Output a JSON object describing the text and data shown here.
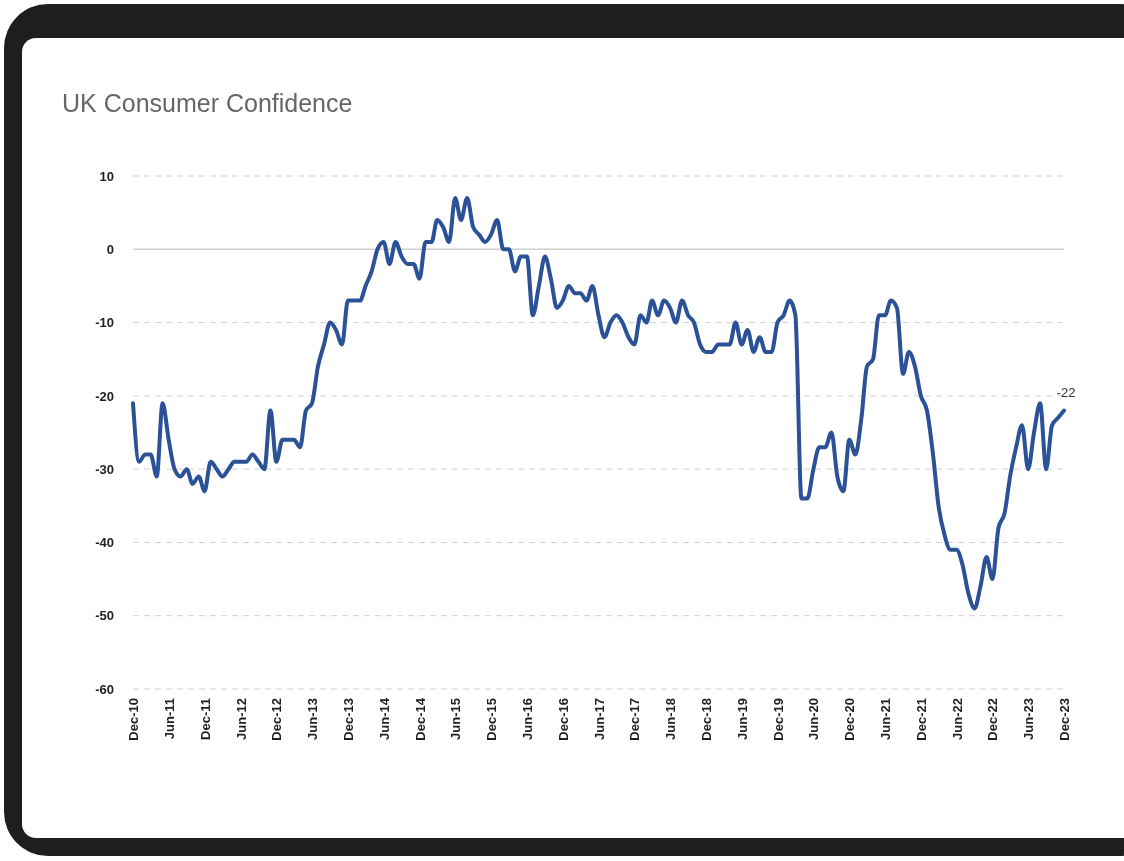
{
  "chart_data": {
    "type": "line",
    "title": "UK Consumer Confidence",
    "x": [
      "2010-12",
      "2011-01",
      "2011-02",
      "2011-03",
      "2011-04",
      "2011-05",
      "2011-06",
      "2011-07",
      "2011-08",
      "2011-09",
      "2011-10",
      "2011-11",
      "2011-12",
      "2012-01",
      "2012-02",
      "2012-03",
      "2012-04",
      "2012-05",
      "2012-06",
      "2012-07",
      "2012-08",
      "2012-09",
      "2012-10",
      "2012-11",
      "2012-12",
      "2013-01",
      "2013-02",
      "2013-03",
      "2013-04",
      "2013-05",
      "2013-06",
      "2013-07",
      "2013-08",
      "2013-09",
      "2013-10",
      "2013-11",
      "2013-12",
      "2014-01",
      "2014-02",
      "2014-03",
      "2014-04",
      "2014-05",
      "2014-06",
      "2014-07",
      "2014-08",
      "2014-09",
      "2014-10",
      "2014-11",
      "2014-12",
      "2015-01",
      "2015-02",
      "2015-03",
      "2015-04",
      "2015-05",
      "2015-06",
      "2015-07",
      "2015-08",
      "2015-09",
      "2015-10",
      "2015-11",
      "2015-12",
      "2016-01",
      "2016-02",
      "2016-03",
      "2016-04",
      "2016-05",
      "2016-06",
      "2016-07",
      "2016-08",
      "2016-09",
      "2016-10",
      "2016-11",
      "2016-12",
      "2017-01",
      "2017-02",
      "2017-03",
      "2017-04",
      "2017-05",
      "2017-06",
      "2017-07",
      "2017-08",
      "2017-09",
      "2017-10",
      "2017-11",
      "2017-12",
      "2018-01",
      "2018-02",
      "2018-03",
      "2018-04",
      "2018-05",
      "2018-06",
      "2018-07",
      "2018-08",
      "2018-09",
      "2018-10",
      "2018-11",
      "2018-12",
      "2019-01",
      "2019-02",
      "2019-03",
      "2019-04",
      "2019-05",
      "2019-06",
      "2019-07",
      "2019-08",
      "2019-09",
      "2019-10",
      "2019-11",
      "2019-12",
      "2020-01",
      "2020-02",
      "2020-03",
      "2020-04",
      "2020-05",
      "2020-06",
      "2020-07",
      "2020-08",
      "2020-09",
      "2020-10",
      "2020-11",
      "2020-12",
      "2021-01",
      "2021-02",
      "2021-03",
      "2021-04",
      "2021-05",
      "2021-06",
      "2021-07",
      "2021-08",
      "2021-09",
      "2021-10",
      "2021-11",
      "2021-12",
      "2022-01",
      "2022-02",
      "2022-03",
      "2022-04",
      "2022-05",
      "2022-06",
      "2022-07",
      "2022-08",
      "2022-09",
      "2022-10",
      "2022-11",
      "2022-12",
      "2023-01",
      "2023-02",
      "2023-03",
      "2023-04",
      "2023-05",
      "2023-06",
      "2023-07",
      "2023-08",
      "2023-09",
      "2023-10",
      "2023-11",
      "2023-12"
    ],
    "series": [
      {
        "color": "#2b5197",
        "values": [
          -21,
          -29,
          -28,
          -28,
          -31,
          -21,
          -26,
          -30,
          -31,
          -30,
          -32,
          -31,
          -33,
          -29,
          -30,
          -31,
          -30,
          -29,
          -29,
          -29,
          -28,
          -29,
          -30,
          -22,
          -29,
          -26,
          -26,
          -26,
          -27,
          -22,
          -21,
          -16,
          -13,
          -10,
          -11,
          -13,
          -7,
          -7,
          -7,
          -5,
          -3,
          0,
          1,
          -2,
          1,
          -1,
          -2,
          -2,
          -4,
          1,
          1,
          4,
          3,
          1,
          7,
          4,
          7,
          3,
          2,
          1,
          2,
          4,
          0,
          0,
          -3,
          -1,
          -1,
          -9,
          -5,
          -1,
          -4,
          -8,
          -7,
          -5,
          -6,
          -6,
          -7,
          -5,
          -9,
          -12,
          -10,
          -9,
          -10,
          -12,
          -13,
          -9,
          -10,
          -7,
          -9,
          -7,
          -8,
          -10,
          -7,
          -9,
          -10,
          -13,
          -14,
          -14,
          -13,
          -13,
          -13,
          -10,
          -13,
          -11,
          -14,
          -12,
          -14,
          -14,
          -10,
          -9,
          -7,
          -9,
          -34,
          -34,
          -30,
          -27,
          -27,
          -25,
          -31,
          -33,
          -26,
          -28,
          -23,
          -16,
          -15,
          -9,
          -9,
          -7,
          -8,
          -17,
          -14,
          -16,
          -20,
          -22,
          -28,
          -35,
          -39,
          -41,
          -41,
          -43,
          -47,
          -49,
          -46,
          -42,
          -45,
          -38,
          -36,
          -31,
          -27,
          -24,
          -30,
          -25,
          -21,
          -30,
          -24,
          -23,
          -22
        ]
      }
    ],
    "xlim": [
      "2010-12",
      "2023-12"
    ],
    "xticks": [
      {
        "value": "2010-12",
        "label": "Dec-10"
      },
      {
        "value": "2011-06",
        "label": "Jun-11"
      },
      {
        "value": "2011-12",
        "label": "Dec-11"
      },
      {
        "value": "2012-06",
        "label": "Jun-12"
      },
      {
        "value": "2012-12",
        "label": "Dec-12"
      },
      {
        "value": "2013-06",
        "label": "Jun-13"
      },
      {
        "value": "2013-12",
        "label": "Dec-13"
      },
      {
        "value": "2014-06",
        "label": "Jun-14"
      },
      {
        "value": "2014-12",
        "label": "Dec-14"
      },
      {
        "value": "2015-06",
        "label": "Jun-15"
      },
      {
        "value": "2015-12",
        "label": "Dec-15"
      },
      {
        "value": "2016-06",
        "label": "Jun-16"
      },
      {
        "value": "2016-12",
        "label": "Dec-16"
      },
      {
        "value": "2017-06",
        "label": "Jun-17"
      },
      {
        "value": "2017-12",
        "label": "Dec-17"
      },
      {
        "value": "2018-06",
        "label": "Jun-18"
      },
      {
        "value": "2018-12",
        "label": "Dec-18"
      },
      {
        "value": "2019-06",
        "label": "Jun-19"
      },
      {
        "value": "2019-12",
        "label": "Dec-19"
      },
      {
        "value": "2020-06",
        "label": "Jun-20"
      },
      {
        "value": "2020-12",
        "label": "Dec-20"
      },
      {
        "value": "2021-06",
        "label": "Jun-21"
      },
      {
        "value": "2021-12",
        "label": "Dec-21"
      },
      {
        "value": "2022-06",
        "label": "Jun-22"
      },
      {
        "value": "2022-12",
        "label": "Dec-22"
      },
      {
        "value": "2023-06",
        "label": "Jun-23"
      },
      {
        "value": "2023-12",
        "label": "Dec-23"
      }
    ],
    "ylim": [
      -60,
      10
    ],
    "yticks": [
      10,
      0,
      -10,
      -20,
      -30,
      -40,
      -50,
      -60
    ],
    "grid": "y",
    "annotations": [
      {
        "text": "-22",
        "x": "2023-12",
        "y": -22
      }
    ]
  }
}
